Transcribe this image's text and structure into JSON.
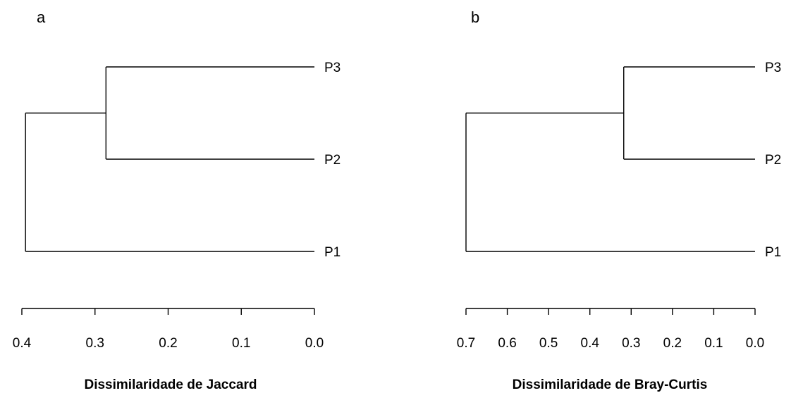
{
  "chart_data": [
    {
      "type": "dendrogram",
      "panel_label": "a",
      "xlabel": "Dissimilaridade de Jaccard",
      "xlim": [
        0.4,
        0.0
      ],
      "ticks": [
        {
          "value": 0.4,
          "label": "0.4"
        },
        {
          "value": 0.3,
          "label": "0.3"
        },
        {
          "value": 0.2,
          "label": "0.2"
        },
        {
          "value": 0.1,
          "label": "0.1"
        },
        {
          "value": 0.0,
          "label": "0.0"
        }
      ],
      "leaves": [
        "P3",
        "P2",
        "P1"
      ],
      "merges": [
        {
          "members": [
            "P3",
            "P2"
          ],
          "height": 0.285
        },
        {
          "members": [
            "P3",
            "P2",
            "P1"
          ],
          "height": 0.395
        }
      ]
    },
    {
      "type": "dendrogram",
      "panel_label": "b",
      "xlabel": "Dissimilaridade de Bray-Curtis",
      "xlim": [
        0.7,
        0.0
      ],
      "ticks": [
        {
          "value": 0.7,
          "label": "0.7"
        },
        {
          "value": 0.6,
          "label": "0.6"
        },
        {
          "value": 0.5,
          "label": "0.5"
        },
        {
          "value": 0.4,
          "label": "0.4"
        },
        {
          "value": 0.3,
          "label": "0.3"
        },
        {
          "value": 0.2,
          "label": "0.2"
        },
        {
          "value": 0.1,
          "label": "0.1"
        },
        {
          "value": 0.0,
          "label": "0.0"
        }
      ],
      "leaves": [
        "P3",
        "P2",
        "P1"
      ],
      "merges": [
        {
          "members": [
            "P3",
            "P2"
          ],
          "height": 0.318
        },
        {
          "members": [
            "P3",
            "P2",
            "P1"
          ],
          "height": 0.7
        }
      ]
    }
  ]
}
